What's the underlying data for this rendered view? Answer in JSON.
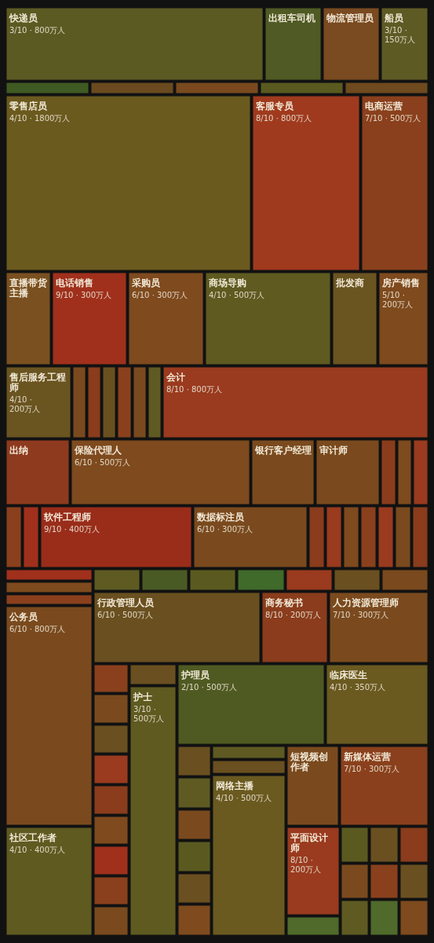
{
  "chart_data": {
    "type": "other",
    "categories": [
      "快递员",
      "出租车司机",
      "物流管理员",
      "船员",
      null,
      null,
      null,
      null,
      null,
      "零售店员",
      "客服专员",
      "电商运营",
      "直播带货主播",
      "电话销售",
      "采购员",
      "商场导购",
      "批发商",
      "房产销售",
      "售后服务工程师",
      null,
      null,
      null,
      null,
      null,
      null,
      "会计",
      "出纳",
      "保险代理人",
      "银行客户经理",
      "审计师",
      null,
      null,
      null,
      null,
      null,
      "软件工程师",
      "数据标注员",
      null,
      null,
      null,
      null,
      null,
      null,
      null,
      null,
      null,
      null,
      "公务员",
      "社区工作者",
      null,
      null,
      null,
      null,
      null,
      null,
      null,
      "行政管理人员",
      "商务秘书",
      "人力资源管理师",
      null,
      null,
      null,
      null,
      null,
      null,
      null,
      null,
      null,
      null,
      "护士",
      "护理员",
      "临床医生",
      null,
      null,
      null,
      null,
      null,
      null,
      null,
      null,
      "网络主播",
      "短视频创作者",
      "新媒体运营",
      "平面设计师",
      null,
      null,
      null,
      null,
      null,
      null,
      null,
      null,
      null,
      null
    ],
    "values": [
      800,
      null,
      null,
      150,
      null,
      null,
      null,
      null,
      null,
      1800,
      800,
      500,
      null,
      300,
      300,
      500,
      null,
      200,
      200,
      null,
      null,
      null,
      null,
      null,
      null,
      800,
      null,
      500,
      null,
      null,
      null,
      null,
      null,
      null,
      null,
      400,
      300,
      null,
      null,
      null,
      null,
      null,
      null,
      null,
      null,
      null,
      null,
      800,
      400,
      null,
      null,
      null,
      null,
      null,
      null,
      null,
      500,
      200,
      300,
      null,
      null,
      null,
      null,
      null,
      null,
      null,
      null,
      null,
      null,
      500,
      500,
      350,
      null,
      null,
      null,
      null,
      null,
      null,
      null,
      null,
      500,
      null,
      300,
      200,
      null,
      null,
      null,
      null,
      null,
      null,
      null,
      null,
      null,
      null
    ],
    "value_labels": [
      "3/10 · 800万人",
      null,
      null,
      "3/10 · 150万人",
      null,
      null,
      null,
      null,
      null,
      "4/10 · 1800万人",
      "8/10 · 800万人",
      "7/10 · 500万人",
      null,
      "9/10 · 300万人",
      "6/10 · 300万人",
      "4/10 · 500万人",
      null,
      "5/10 · 200万人",
      "4/10 · 200万人",
      null,
      null,
      null,
      null,
      null,
      null,
      "8/10 · 800万人",
      null,
      "6/10 · 500万人",
      null,
      null,
      null,
      null,
      null,
      null,
      null,
      "9/10 · 400万人",
      "6/10 · 300万人",
      null,
      null,
      null,
      null,
      null,
      null,
      null,
      null,
      null,
      null,
      "6/10 · 800万人",
      "4/10 · 400万人",
      null,
      null,
      null,
      null,
      null,
      null,
      null,
      "6/10 · 500万人",
      "8/10 · 200万人",
      "7/10 · 300万人",
      null,
      null,
      null,
      null,
      null,
      null,
      null,
      null,
      null,
      null,
      "3/10 · 500万人",
      "2/10 · 500万人",
      "4/10 · 350万人",
      null,
      null,
      null,
      null,
      null,
      null,
      null,
      null,
      "4/10 · 500万人",
      null,
      "7/10 · 300万人",
      "8/10 · 200万人",
      null,
      null,
      null,
      null,
      null,
      null,
      null,
      null,
      null,
      null
    ],
    "colors": [
      "#5b5a22",
      "#4f5a24",
      "#7a4a20",
      "#5e5a24",
      "#3f5a22",
      "#6a4a1e",
      "#7a4a1e",
      "#5a5a20",
      "#6f4a1e",
      "#6b5a1e",
      "#a03a1e",
      "#8a401c",
      "#7a5020",
      "#a0301c",
      "#7e4a1e",
      "#5e5a20",
      "#6a5420",
      "#7e4a1e",
      "#6a5420",
      "#7a4a1e",
      "#8a3c1c",
      "#6a5020",
      "#8a401c",
      "#7a4a1e",
      "#5e5a22",
      "#9a3a1e",
      "#8e3a1e",
      "#7e4a1e",
      "#7a4a1e",
      "#7a4a1e",
      "#8a3c1c",
      "#7e4a1e",
      "#9a3a1e",
      "#8a401c",
      "#a0301c",
      "#9a2c1a",
      "#7a4a1e",
      "#8a3c1c",
      "#9a3a1e",
      "#7e4a1e",
      "#8a401c",
      "#9a3a1e",
      "#7a4a1e",
      "#8a3c1c",
      "#a0301c",
      "#7e4a1e",
      "#8a401c",
      "#7a4a1e",
      "#5e5a20",
      "#5e5a22",
      "#4a5a24",
      "#5a5a20",
      "#3f6a2a",
      "#9a3a1e",
      "#6a5020",
      "#7a4a1e",
      "#6a5020",
      "#8a3c1c",
      "#7a4a1e",
      "#8a401c",
      "#7a4a1e",
      "#6a5020",
      "#9a3a1e",
      "#8a3c1c",
      "#7e4a1e",
      "#a0301c",
      "#8a401c",
      "#7a4a1e",
      "#6a5020",
      "#5e5a20",
      "#4f5a22",
      "#6a5a20",
      "#6a5020",
      "#5e5a22",
      "#7a4a1e",
      "#5a5a20",
      "#6a5020",
      "#7e4a1e",
      "#5e5a22",
      "#6a5020",
      "#6a5a20",
      "#7a4a1e",
      "#8a401c",
      "#9a3a1e",
      "#4f6a2a",
      "#5a5a20",
      "#6a5020",
      "#8a3c1c",
      "#7a4a1e",
      "#5e5a22",
      "#8a401c",
      "#6a5020",
      "#4f6a2a",
      "#7e4a1e"
    ]
  }
}
